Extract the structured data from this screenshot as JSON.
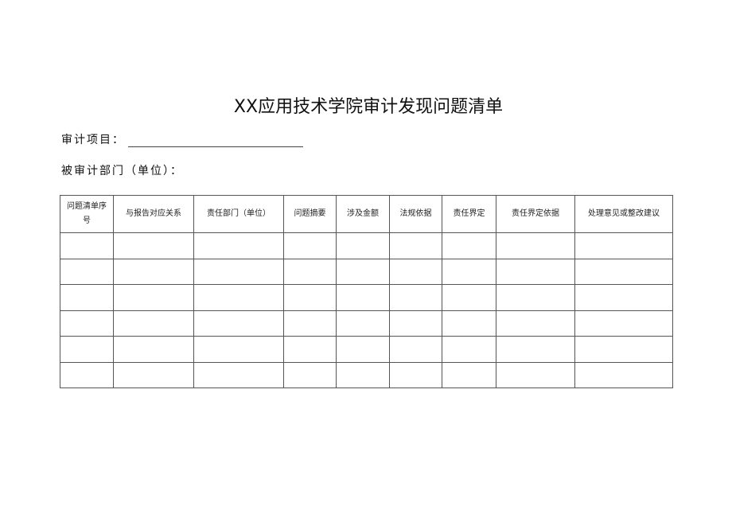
{
  "title": "XX应用技术学院审计发现问题清单",
  "audit_project_label": "审计项目：",
  "audited_dept_label": "被审计部门（单位）：",
  "table": {
    "columns": [
      "问题清单序号",
      "与报告对应关系",
      "责任部门（单位）",
      "问题摘要",
      "涉及金额",
      "法规依据",
      "责任界定",
      "责任界定依据",
      "处理意见或整改建议"
    ],
    "rows": [
      [
        "",
        "",
        "",
        "",
        "",
        "",
        "",
        "",
        ""
      ],
      [
        "",
        "",
        "",
        "",
        "",
        "",
        "",
        "",
        ""
      ],
      [
        "",
        "",
        "",
        "",
        "",
        "",
        "",
        "",
        ""
      ],
      [
        "",
        "",
        "",
        "",
        "",
        "",
        "",
        "",
        ""
      ],
      [
        "",
        "",
        "",
        "",
        "",
        "",
        "",
        "",
        ""
      ],
      [
        "",
        "",
        "",
        "",
        "",
        "",
        "",
        "",
        ""
      ]
    ]
  }
}
